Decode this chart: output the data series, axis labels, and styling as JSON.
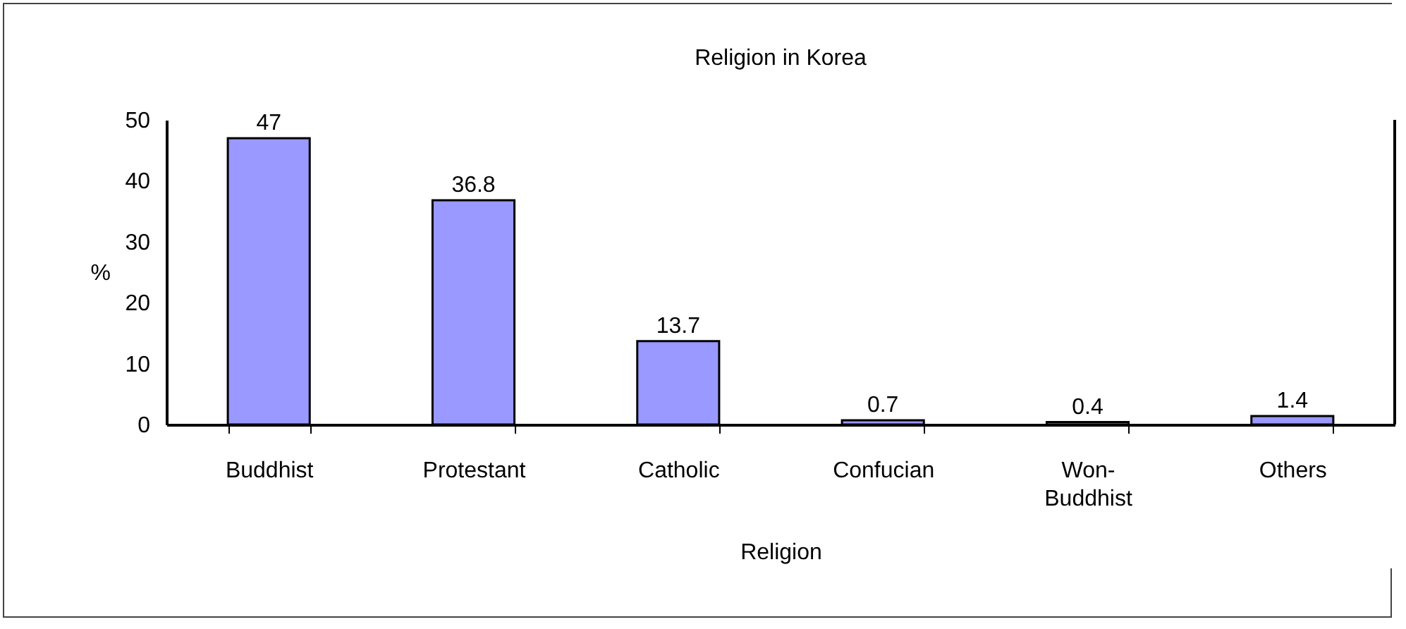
{
  "chart_data": {
    "type": "bar",
    "title": "Religion in Korea",
    "xlabel": "Religion",
    "ylabel": "%",
    "categories": [
      "Buddhist",
      "Protestant",
      "Catholic",
      "Confucian",
      "Won-Buddhist",
      "Others"
    ],
    "values": [
      47,
      36.8,
      13.7,
      0.7,
      0.4,
      1.4
    ],
    "color": "#9999ff",
    "ylim": [
      0,
      50
    ],
    "yticks": [
      0,
      10,
      20,
      30,
      40,
      50
    ],
    "grid": false,
    "data_labels": true
  }
}
